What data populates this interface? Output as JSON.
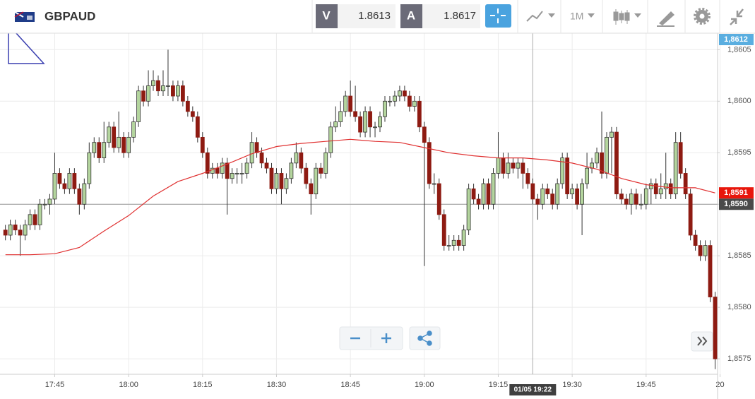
{
  "header": {
    "symbol": "GBPAUD",
    "bid_label": "V",
    "bid": "1.8613",
    "ask_label": "A",
    "ask": "1.8617",
    "timeframe": "1M"
  },
  "chart_data": {
    "type": "candlestick",
    "x": [
      1055,
      1056,
      1057,
      1058,
      1059,
      1060,
      1061,
      1062,
      1063,
      1064,
      1065,
      1066,
      1067,
      1068,
      1069,
      1070,
      1071,
      1072,
      1073,
      1074,
      1075,
      1076,
      1077,
      1078,
      1079,
      1080,
      1081,
      1082,
      1083,
      1084,
      1085,
      1086,
      1087,
      1088,
      1089,
      1090,
      1091,
      1092,
      1093,
      1094,
      1095,
      1096,
      1097,
      1098,
      1099,
      1100,
      1101,
      1102,
      1103,
      1104,
      1105,
      1106,
      1107,
      1108,
      1109,
      1110,
      1111,
      1112,
      1113,
      1114,
      1115,
      1116,
      1117,
      1118,
      1119,
      1120,
      1121,
      1122,
      1123,
      1124,
      1125,
      1126,
      1127,
      1128,
      1129,
      1130,
      1131,
      1132,
      1133,
      1134,
      1135,
      1136,
      1137,
      1138,
      1139,
      1140,
      1141,
      1142,
      1143,
      1144,
      1145,
      1146,
      1147,
      1148,
      1149,
      1150,
      1151,
      1152,
      1153,
      1154,
      1155,
      1156,
      1157,
      1158,
      1159,
      1160,
      1161,
      1162,
      1163,
      1164,
      1165,
      1166,
      1167,
      1168,
      1169,
      1170,
      1171,
      1172,
      1173,
      1174,
      1175,
      1176,
      1177,
      1178,
      1179,
      1180,
      1181,
      1182,
      1183,
      1184,
      1185,
      1186,
      1187,
      1188,
      1189,
      1190,
      1191,
      1192,
      1193,
      1194,
      1195,
      1196,
      1197,
      1198,
      1199
    ],
    "open": [
      1.85875,
      1.8587,
      1.8588,
      1.85875,
      1.8587,
      1.8588,
      1.8589,
      1.8588,
      1.859,
      1.859,
      1.85905,
      1.8593,
      1.8592,
      1.85915,
      1.8593,
      1.85915,
      1.859,
      1.8592,
      1.8595,
      1.8596,
      1.85945,
      1.8596,
      1.85975,
      1.85955,
      1.85965,
      1.8595,
      1.85965,
      1.8598,
      1.8601,
      1.86,
      1.86015,
      1.8602,
      1.8601,
      1.86015,
      1.86015,
      1.86005,
      1.86015,
      1.86,
      1.8599,
      1.85985,
      1.85965,
      1.8595,
      1.8593,
      1.85935,
      1.8593,
      1.8594,
      1.85925,
      1.8593,
      1.8593,
      1.8593,
      1.8594,
      1.8596,
      1.8595,
      1.8594,
      1.85935,
      1.85915,
      1.8593,
      1.85915,
      1.85925,
      1.8594,
      1.8595,
      1.85935,
      1.8592,
      1.8591,
      1.85935,
      1.8593,
      1.8595,
      1.85975,
      1.8598,
      1.8599,
      1.86005,
      1.8599,
      1.85985,
      1.8597,
      1.8599,
      1.85975,
      1.85975,
      1.85985,
      1.86,
      1.86,
      1.86005,
      1.8601,
      1.86005,
      1.85995,
      1.86,
      1.85975,
      1.8596,
      1.8592,
      1.8592,
      1.8589,
      1.8586,
      1.8586,
      1.85865,
      1.8586,
      1.85875,
      1.85915,
      1.85905,
      1.859,
      1.8592,
      1.859,
      1.8593,
      1.85945,
      1.8593,
      1.8594,
      1.85935,
      1.8594,
      1.8593,
      1.8592,
      1.85905,
      1.859,
      1.85915,
      1.8591,
      1.859,
      1.8592,
      1.85945,
      1.8591,
      1.85915,
      1.859,
      1.8592,
      1.85935,
      1.8594,
      1.8595,
      1.8593,
      1.85965,
      1.8597,
      1.8591,
      1.85905,
      1.859,
      1.8591,
      1.859,
      1.859,
      1.85915,
      1.8592,
      1.8591,
      1.85915,
      1.8592,
      1.8591,
      1.8596,
      1.8593,
      1.8591,
      1.8587,
      1.8586,
      1.8585,
      1.8586,
      1.8581
    ],
    "high": [
      1.8588,
      1.85885,
      1.85885,
      1.8588,
      1.85885,
      1.85895,
      1.85895,
      1.85905,
      1.85905,
      1.8591,
      1.8595,
      1.85935,
      1.85925,
      1.85935,
      1.85935,
      1.8592,
      1.85925,
      1.8596,
      1.85965,
      1.85965,
      1.8598,
      1.8598,
      1.8598,
      1.8599,
      1.8597,
      1.8597,
      1.85985,
      1.86015,
      1.86015,
      1.8603,
      1.8603,
      1.86025,
      1.8603,
      1.8605,
      1.8602,
      1.8602,
      1.8602,
      1.86005,
      1.85995,
      1.8599,
      1.8597,
      1.85955,
      1.8594,
      1.8594,
      1.85945,
      1.85945,
      1.85935,
      1.85935,
      1.8594,
      1.85945,
      1.8597,
      1.85965,
      1.85955,
      1.85945,
      1.8594,
      1.85935,
      1.85935,
      1.8593,
      1.85945,
      1.8596,
      1.85955,
      1.8594,
      1.85925,
      1.8594,
      1.8594,
      1.85955,
      1.8598,
      1.85995,
      1.86,
      1.8601,
      1.8602,
      1.86015,
      1.8599,
      1.85995,
      1.85995,
      1.8598,
      1.8599,
      1.86005,
      1.86005,
      1.8601,
      1.86015,
      1.86015,
      1.8601,
      1.86005,
      1.86005,
      1.8598,
      1.85965,
      1.8593,
      1.85925,
      1.85895,
      1.8587,
      1.8587,
      1.8587,
      1.8588,
      1.8592,
      1.8592,
      1.8591,
      1.85925,
      1.85925,
      1.85935,
      1.8597,
      1.8595,
      1.8595,
      1.85945,
      1.85945,
      1.85945,
      1.85935,
      1.85925,
      1.8591,
      1.8592,
      1.8592,
      1.85915,
      1.85925,
      1.8595,
      1.8595,
      1.8592,
      1.8592,
      1.85925,
      1.8595,
      1.85945,
      1.85955,
      1.8599,
      1.8597,
      1.85975,
      1.85975,
      1.85915,
      1.8591,
      1.85915,
      1.85915,
      1.8591,
      1.8592,
      1.85925,
      1.85925,
      1.8593,
      1.8595,
      1.85925,
      1.8597,
      1.8597,
      1.85935,
      1.85915,
      1.85875,
      1.85865,
      1.85865,
      1.85865,
      1.85815
    ],
    "low": [
      1.85865,
      1.85865,
      1.8587,
      1.8585,
      1.85865,
      1.85875,
      1.85875,
      1.85875,
      1.85895,
      1.8589,
      1.859,
      1.85915,
      1.8591,
      1.8591,
      1.8591,
      1.8589,
      1.85895,
      1.85915,
      1.85945,
      1.8594,
      1.8594,
      1.85955,
      1.8595,
      1.8595,
      1.85945,
      1.85945,
      1.8596,
      1.85975,
      1.85995,
      1.85995,
      1.8601,
      1.86005,
      1.86005,
      1.86005,
      1.86,
      1.86,
      1.85995,
      1.85985,
      1.8598,
      1.8596,
      1.85945,
      1.85925,
      1.85925,
      1.85925,
      1.85925,
      1.8589,
      1.8592,
      1.8592,
      1.8592,
      1.85925,
      1.85935,
      1.85945,
      1.85935,
      1.8593,
      1.8591,
      1.8591,
      1.859,
      1.8591,
      1.8592,
      1.85935,
      1.8593,
      1.85915,
      1.8589,
      1.85905,
      1.85925,
      1.85925,
      1.85945,
      1.8597,
      1.85975,
      1.85985,
      1.85985,
      1.8598,
      1.85965,
      1.85965,
      1.85965,
      1.85965,
      1.8597,
      1.8598,
      1.85995,
      1.85995,
      1.86,
      1.86,
      1.8599,
      1.8599,
      1.8597,
      1.8584,
      1.85915,
      1.8591,
      1.85885,
      1.85855,
      1.85855,
      1.85855,
      1.85855,
      1.85855,
      1.8587,
      1.859,
      1.85895,
      1.85895,
      1.85895,
      1.85895,
      1.85925,
      1.85925,
      1.85925,
      1.8593,
      1.85925,
      1.85915,
      1.85915,
      1.859,
      1.85885,
      1.85895,
      1.85905,
      1.85895,
      1.85895,
      1.85915,
      1.85905,
      1.85905,
      1.85895,
      1.8587,
      1.85915,
      1.8593,
      1.85935,
      1.85925,
      1.85925,
      1.8593,
      1.85905,
      1.859,
      1.85895,
      1.8589,
      1.85895,
      1.85895,
      1.85895,
      1.859,
      1.85905,
      1.85905,
      1.85905,
      1.85905,
      1.85905,
      1.85925,
      1.85905,
      1.85865,
      1.85855,
      1.85845,
      1.85845,
      1.85805,
      1.8574
    ],
    "close": [
      1.8587,
      1.8588,
      1.85875,
      1.8587,
      1.8588,
      1.8589,
      1.8588,
      1.859,
      1.859,
      1.85905,
      1.8593,
      1.8592,
      1.85915,
      1.8593,
      1.85915,
      1.859,
      1.8592,
      1.8595,
      1.8596,
      1.85945,
      1.8596,
      1.85975,
      1.85955,
      1.85965,
      1.8595,
      1.85965,
      1.8598,
      1.8601,
      1.86,
      1.86015,
      1.8602,
      1.8601,
      1.86015,
      1.86015,
      1.86005,
      1.86015,
      1.86,
      1.8599,
      1.85985,
      1.85965,
      1.8595,
      1.8593,
      1.85935,
      1.8593,
      1.8594,
      1.85925,
      1.8593,
      1.8593,
      1.8593,
      1.8594,
      1.8596,
      1.8595,
      1.8594,
      1.85935,
      1.85915,
      1.8593,
      1.85915,
      1.85925,
      1.8594,
      1.8595,
      1.85935,
      1.8592,
      1.8591,
      1.85935,
      1.8593,
      1.8595,
      1.85975,
      1.8598,
      1.8599,
      1.86005,
      1.8599,
      1.85985,
      1.8597,
      1.8599,
      1.85975,
      1.85975,
      1.85985,
      1.86,
      1.86,
      1.86005,
      1.8601,
      1.86005,
      1.85995,
      1.86,
      1.85975,
      1.8596,
      1.8592,
      1.8592,
      1.8589,
      1.8586,
      1.8586,
      1.85865,
      1.8586,
      1.85875,
      1.85915,
      1.85905,
      1.859,
      1.8592,
      1.859,
      1.8593,
      1.85945,
      1.8593,
      1.8594,
      1.85935,
      1.8594,
      1.8593,
      1.8592,
      1.85905,
      1.859,
      1.85915,
      1.8591,
      1.859,
      1.8592,
      1.85945,
      1.8591,
      1.85915,
      1.859,
      1.8592,
      1.85935,
      1.8594,
      1.8595,
      1.8593,
      1.85965,
      1.8597,
      1.8591,
      1.85905,
      1.859,
      1.8591,
      1.859,
      1.859,
      1.85915,
      1.8592,
      1.8591,
      1.85915,
      1.8592,
      1.8591,
      1.8596,
      1.8593,
      1.8591,
      1.8587,
      1.8586,
      1.8585,
      1.8586,
      1.8581,
      1.8575
    ],
    "up_color": "#b4d59e",
    "down_color": "#8e1b12",
    "outline_color": "#333333",
    "ma": {
      "color": "#e03131",
      "x": [
        1055,
        1060,
        1065,
        1070,
        1075,
        1080,
        1085,
        1090,
        1095,
        1100,
        1105,
        1110,
        1115,
        1120,
        1125,
        1130,
        1135,
        1140,
        1145,
        1150,
        1155,
        1160,
        1165,
        1170,
        1175,
        1180,
        1185,
        1190,
        1195,
        1199
      ],
      "values": [
        1.85851,
        1.85851,
        1.85852,
        1.85858,
        1.85874,
        1.85889,
        1.85908,
        1.85922,
        1.8593,
        1.85939,
        1.85949,
        1.85956,
        1.85959,
        1.85961,
        1.85963,
        1.85961,
        1.8596,
        1.85955,
        1.8595,
        1.85947,
        1.85945,
        1.85945,
        1.85943,
        1.8594,
        1.85934,
        1.85925,
        1.85919,
        1.85916,
        1.85916,
        1.85911
      ]
    },
    "ma_tag": "1,8591",
    "top_tag": "1,8612",
    "price_line": {
      "value": 1.859,
      "label": "1,8590"
    },
    "crosshair": {
      "x": 1162,
      "label": "01/05 19:22"
    },
    "xlim": [
      1053.9,
      1199.5
    ],
    "xticks": [
      {
        "value": 1065,
        "label": "17:45"
      },
      {
        "value": 1080,
        "label": "18:00"
      },
      {
        "value": 1095,
        "label": "18:15"
      },
      {
        "value": 1110,
        "label": "18:30"
      },
      {
        "value": 1125,
        "label": "18:45"
      },
      {
        "value": 1140,
        "label": "19:00"
      },
      {
        "value": 1155,
        "label": "19:15"
      },
      {
        "value": 1170,
        "label": "19:30"
      },
      {
        "value": 1185,
        "label": "19:45"
      },
      {
        "value": 1200,
        "label": "20"
      }
    ],
    "ylim": [
      1.85735,
      1.86066
    ],
    "yticks": [
      {
        "value": 1.8575,
        "label": "1,8575"
      },
      {
        "value": 1.858,
        "label": "1,8580"
      },
      {
        "value": 1.8585,
        "label": "1,8585"
      },
      {
        "value": 1.859,
        "label": "1,8590"
      },
      {
        "value": 1.8595,
        "label": "1,8595"
      },
      {
        "value": 1.86,
        "label": "1,8600"
      },
      {
        "value": 1.8605,
        "label": "1,8605"
      }
    ],
    "grid": true
  }
}
